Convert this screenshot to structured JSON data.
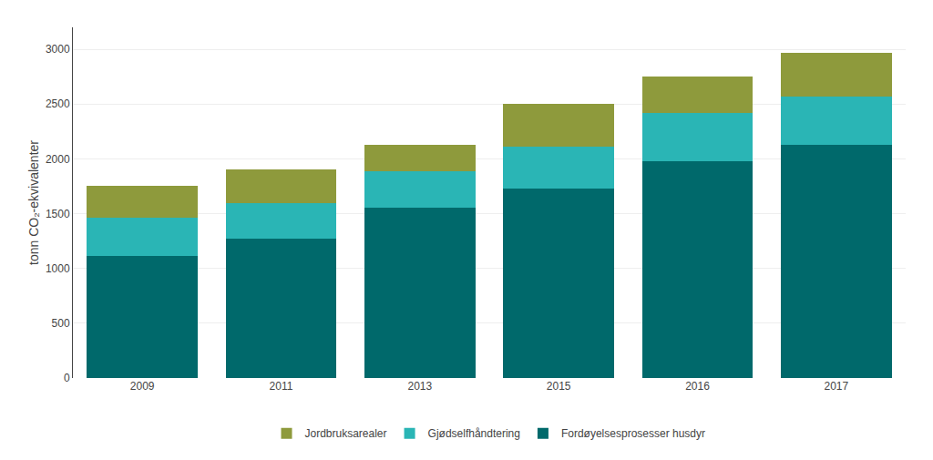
{
  "chart_data": {
    "type": "bar",
    "stacked": true,
    "categories": [
      "2009",
      "2011",
      "2013",
      "2015",
      "2016",
      "2017"
    ],
    "series": [
      {
        "name": "Fordøyelsesprosesser husdyr",
        "color": "#00696b",
        "values": [
          1110,
          1270,
          1555,
          1730,
          1980,
          2130
        ]
      },
      {
        "name": "Gjødselfhåndtering",
        "color": "#2ab5b5",
        "values": [
          350,
          330,
          335,
          385,
          440,
          440
        ]
      },
      {
        "name": "Jordbruksarealer",
        "color": "#8e9a3c",
        "values": [
          290,
          300,
          240,
          385,
          330,
          400
        ]
      }
    ],
    "ylabel": "tonn CO₂-ekvivalenter",
    "ylim": [
      0,
      3200
    ],
    "yticks": [
      0,
      500,
      1000,
      1500,
      2000,
      2500,
      3000
    ],
    "grid": true,
    "legend": "bottom"
  }
}
